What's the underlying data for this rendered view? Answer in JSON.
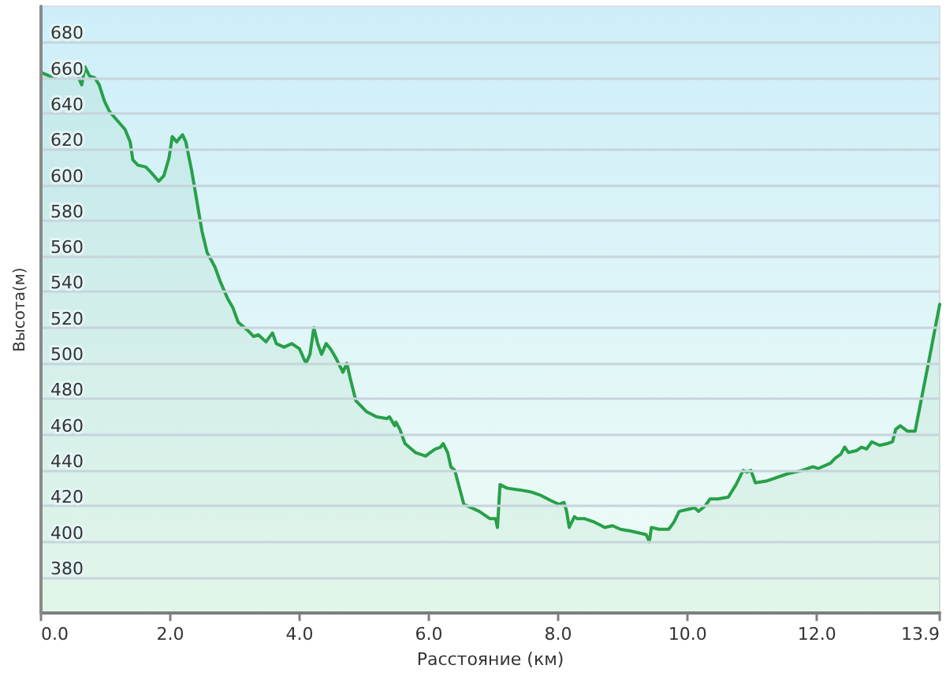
{
  "chart_data": {
    "type": "area",
    "xlabel": "Расстояние (км)",
    "ylabel": "Высота(м)",
    "x": [
      0,
      0.19,
      0.31,
      0.43,
      0.51,
      0.63,
      0.68,
      0.75,
      0.83,
      0.9,
      0.98,
      1.06,
      1.18,
      1.3,
      1.38,
      1.42,
      1.5,
      1.62,
      1.7,
      1.82,
      1.9,
      1.98,
      2.03,
      2.1,
      2.14,
      2.19,
      2.24,
      2.33,
      2.41,
      2.49,
      2.57,
      2.69,
      2.77,
      2.89,
      2.97,
      3.05,
      3.21,
      3.29,
      3.36,
      3.48,
      3.58,
      3.64,
      3.76,
      3.88,
      4,
      4.06,
      4.1,
      4.16,
      4.22,
      4.28,
      4.34,
      4.41,
      4.48,
      4.56,
      4.67,
      4.73,
      4.78,
      4.87,
      5.03,
      5.19,
      5.35,
      5.39,
      5.47,
      5.49,
      5.55,
      5.63,
      5.79,
      5.95,
      6.02,
      6.1,
      6.18,
      6.22,
      6.29,
      6.34,
      6.4,
      6.54,
      6.78,
      6.94,
      7.03,
      7.06,
      7.1,
      7.21,
      7.41,
      7.57,
      7.73,
      7.89,
      8.01,
      8.09,
      8.13,
      8.17,
      8.21,
      8.25,
      8.29,
      8.4,
      8.56,
      8.72,
      8.84,
      8.96,
      9.12,
      9.24,
      9.36,
      9.41,
      9.44,
      9.56,
      9.71,
      9.79,
      9.87,
      9.99,
      10.11,
      10.17,
      10.27,
      10.35,
      10.47,
      10.63,
      10.75,
      10.86,
      10.92,
      10.98,
      11.05,
      11.22,
      11.54,
      11.78,
      11.94,
      12.02,
      12.21,
      12.29,
      12.37,
      12.43,
      12.49,
      12.61,
      12.69,
      12.77,
      12.85,
      12.97,
      13.09,
      13.17,
      13.22,
      13.29,
      13.4,
      13.52,
      13.72,
      13.9
    ],
    "values": [
      663,
      660,
      663,
      661,
      666,
      656,
      666,
      661,
      660,
      656,
      647,
      641,
      636,
      631,
      624,
      614,
      611,
      610,
      607,
      602,
      605,
      615,
      627,
      624,
      626,
      628,
      624,
      608,
      591,
      574,
      562,
      554,
      546,
      536,
      531,
      523,
      518,
      515,
      516,
      512,
      517,
      511,
      509,
      511,
      508,
      503,
      500,
      505,
      520,
      511,
      505,
      511,
      508,
      503,
      495,
      500,
      492,
      479,
      473,
      470,
      469,
      470,
      465,
      467,
      463,
      455,
      450,
      448,
      450,
      452,
      453,
      455,
      450,
      442,
      440,
      421,
      417,
      413,
      413,
      408,
      432,
      430,
      429,
      428,
      426,
      423,
      421,
      422,
      417,
      408,
      411,
      414,
      413,
      413,
      411,
      408,
      409,
      407,
      406,
      405,
      404,
      400,
      408,
      407,
      407,
      411,
      417,
      418,
      419,
      417,
      420,
      424,
      424,
      425,
      432,
      440,
      439,
      440,
      433,
      434,
      438,
      440,
      442,
      441,
      444,
      447,
      449,
      453,
      450,
      451,
      453,
      452,
      456,
      454,
      455,
      456,
      463,
      465,
      462,
      462,
      499,
      533
    ],
    "color": "#27a048",
    "xlim": [
      0,
      13.9
    ],
    "xticks": [
      {
        "value": 0,
        "label": "0.0"
      },
      {
        "value": 2,
        "label": "2.0"
      },
      {
        "value": 4,
        "label": "4.0"
      },
      {
        "value": 6,
        "label": "6.0"
      },
      {
        "value": 8,
        "label": "8.0"
      },
      {
        "value": 10,
        "label": "10.0"
      },
      {
        "value": 12,
        "label": "12.0"
      },
      {
        "value": 13.9,
        "label": "13.9"
      }
    ],
    "ylim": [
      360,
      700
    ],
    "yticks": [
      380,
      400,
      420,
      440,
      460,
      480,
      500,
      520,
      540,
      560,
      580,
      600,
      620,
      640,
      660,
      680
    ],
    "grid": "y"
  }
}
